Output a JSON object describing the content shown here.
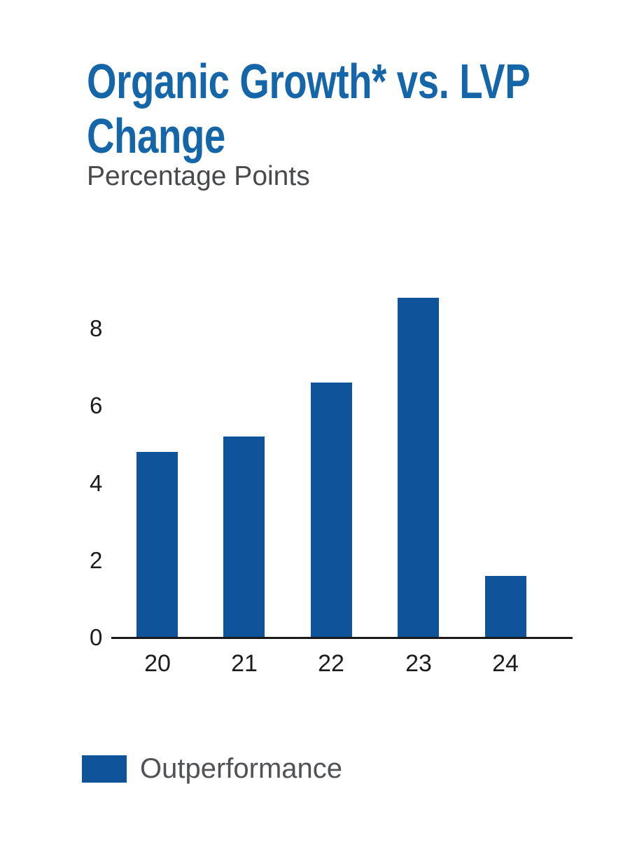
{
  "header": {
    "title_lines": [
      "Organic Growth* vs. LVP",
      "Change"
    ],
    "subtitle": "Percentage Points"
  },
  "legend": {
    "label": "Outperformance"
  },
  "colors": {
    "title_blue": "#1565A9",
    "bar_blue": "#0F549B",
    "axis_black": "#1A1A1A",
    "tick_text": "#1C1C1C",
    "subtitle_gray": "#48494B",
    "legend_gray": "#515256",
    "background": "#FFFFFF"
  },
  "chart_data": {
    "type": "bar",
    "title": "Organic Growth* vs. LVP Change",
    "subtitle": "Percentage Points",
    "xlabel": "",
    "ylabel": "Percentage Points",
    "categories": [
      "20",
      "21",
      "22",
      "23",
      "24"
    ],
    "series": [
      {
        "name": "Outperformance",
        "values": [
          4.8,
          5.2,
          6.6,
          8.8,
          1.6
        ]
      }
    ],
    "yticks": [
      0,
      2,
      4,
      6,
      8
    ],
    "ylim": [
      0,
      9.3
    ],
    "grid": false,
    "legend_position": "bottom-left",
    "bar_color": "#0F549B"
  }
}
